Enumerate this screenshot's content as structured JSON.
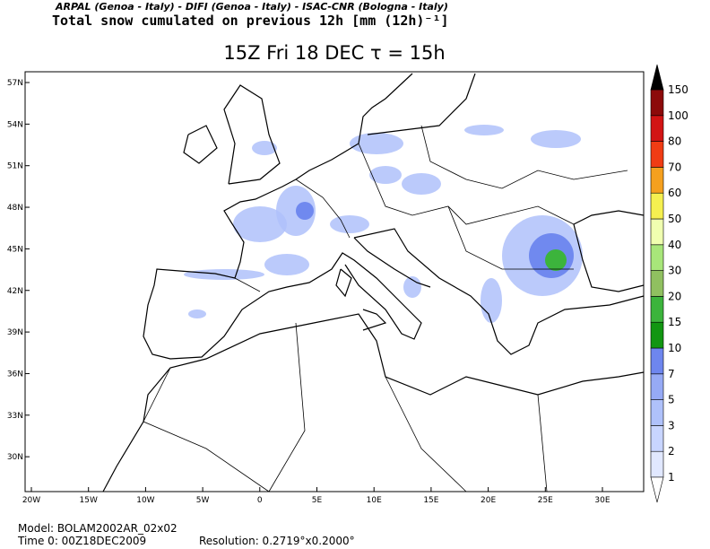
{
  "header": {
    "credits": "ARPAL (Genoa - Italy)  -  DIFI (Genoa - Italy)  -  ISAC-CNR (Bologna - Italy)",
    "field": "Total snow cumulated on previous 12h [mm (12h)⁻¹]",
    "title": "15Z Fri 18 DEC  τ = 15h"
  },
  "map": {
    "lat_labels": [
      "57N",
      "54N",
      "51N",
      "48N",
      "45N",
      "42N",
      "39N",
      "36N",
      "33N",
      "30N"
    ],
    "lon_labels": [
      "20W",
      "15W",
      "10W",
      "5W",
      "0",
      "5E",
      "10E",
      "15E",
      "20E",
      "25E",
      "30E"
    ]
  },
  "colorbar": {
    "levels": [
      1,
      2,
      3,
      5,
      7,
      10,
      15,
      20,
      30,
      40,
      50,
      60,
      70,
      80,
      100,
      150
    ],
    "colors": [
      "#e1e8ff",
      "#c8d5ff",
      "#afc1fa",
      "#96aaf5",
      "#6e86ee",
      "#129612",
      "#3cb43c",
      "#90c060",
      "#a8e67a",
      "#f0ffb0",
      "#f5f050",
      "#f5a01e",
      "#f03c14",
      "#d21414",
      "#8c0a0a"
    ],
    "over_color": "#000000",
    "under_color": "#ffffff"
  },
  "footer": {
    "model": "Model: BOLAM2002AR_02x02",
    "time": "Time 0: 00Z18DEC2009",
    "resolution": "Resolution: 0.2719°x0.2000°"
  }
}
